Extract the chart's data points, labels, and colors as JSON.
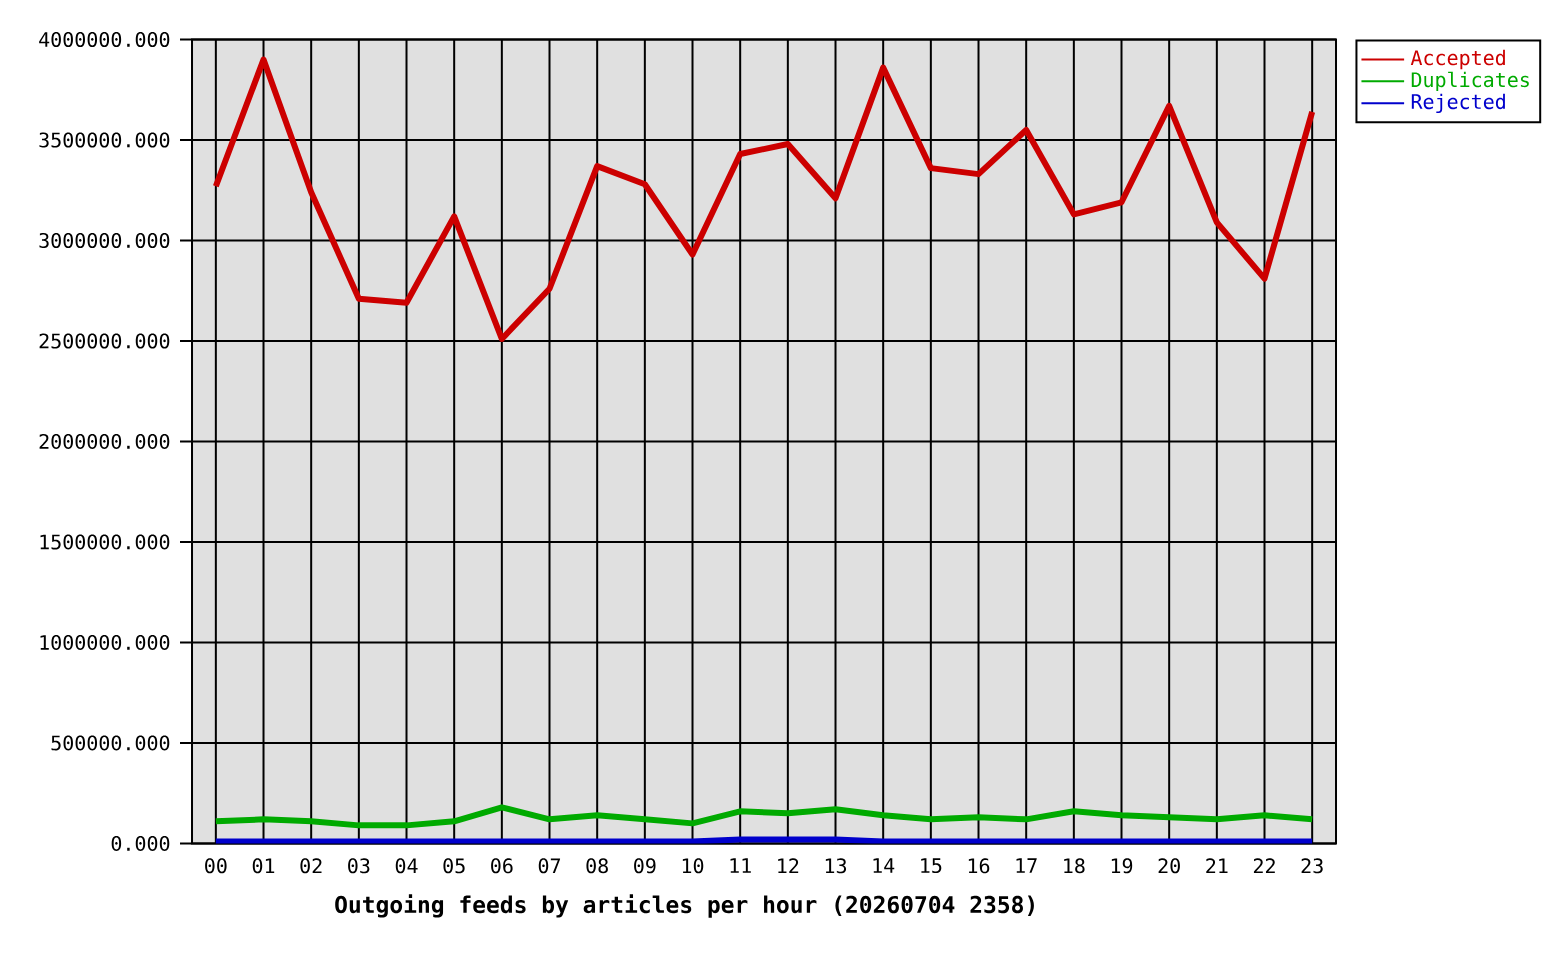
{
  "chart_data": {
    "type": "line",
    "xlabel": "Outgoing feeds by articles per hour (20260704 2358)",
    "categories": [
      "00",
      "01",
      "02",
      "03",
      "04",
      "05",
      "06",
      "07",
      "08",
      "09",
      "10",
      "11",
      "12",
      "13",
      "14",
      "15",
      "16",
      "17",
      "18",
      "19",
      "20",
      "21",
      "22",
      "23"
    ],
    "series": [
      {
        "name": "Accepted",
        "color": "#cc0000",
        "values": [
          3270000,
          3900000,
          3240000,
          2710000,
          2690000,
          3120000,
          2510000,
          2760000,
          3370000,
          3280000,
          2930000,
          3430000,
          3480000,
          3210000,
          3860000,
          3360000,
          3330000,
          3550000,
          3130000,
          3190000,
          3670000,
          3090000,
          2810000,
          3640000
        ]
      },
      {
        "name": "Duplicates",
        "color": "#00aa00",
        "values": [
          110000,
          120000,
          110000,
          90000,
          90000,
          110000,
          180000,
          120000,
          140000,
          120000,
          100000,
          160000,
          150000,
          170000,
          140000,
          120000,
          130000,
          120000,
          160000,
          140000,
          130000,
          120000,
          140000,
          120000
        ]
      },
      {
        "name": "Rejected",
        "color": "#0000cc",
        "values": [
          10000,
          10000,
          10000,
          10000,
          10000,
          10000,
          10000,
          10000,
          10000,
          10000,
          10000,
          20000,
          20000,
          20000,
          10000,
          10000,
          10000,
          10000,
          10000,
          10000,
          10000,
          10000,
          10000,
          10000
        ]
      }
    ],
    "ylim": [
      0,
      4000000
    ],
    "yticks": [
      {
        "value": 0,
        "label": "0.000"
      },
      {
        "value": 500000,
        "label": "500000.000"
      },
      {
        "value": 1000000,
        "label": "1000000.000"
      },
      {
        "value": 1500000,
        "label": "1500000.000"
      },
      {
        "value": 2000000,
        "label": "2000000.000"
      },
      {
        "value": 2500000,
        "label": "2500000.000"
      },
      {
        "value": 3000000,
        "label": "3000000.000"
      },
      {
        "value": 3500000,
        "label": "3500000.000"
      },
      {
        "value": 4000000,
        "label": "4000000.000"
      }
    ],
    "grid": true,
    "legend": "top right"
  }
}
